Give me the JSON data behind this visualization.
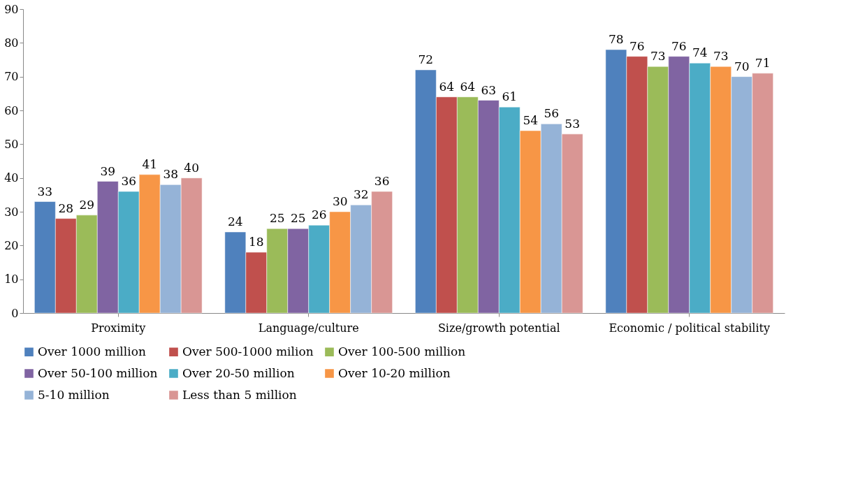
{
  "chart_data": {
    "type": "bar",
    "categories": [
      "Proximity",
      "Language/culture",
      "Size/growth potential",
      "Economic / political stability"
    ],
    "series": [
      {
        "name": "Over 1000 million",
        "color": "#4f81bd",
        "values": [
          33,
          24,
          72,
          78
        ]
      },
      {
        "name": "Over 500-1000 milion",
        "color": "#c0504d",
        "values": [
          28,
          18,
          64,
          76
        ]
      },
      {
        "name": "Over 100-500 million",
        "color": "#9bbb59",
        "values": [
          29,
          25,
          64,
          73
        ]
      },
      {
        "name": "Over 50-100 million",
        "color": "#8064a2",
        "values": [
          39,
          25,
          63,
          76
        ]
      },
      {
        "name": "Over 20-50 million",
        "color": "#4bacc6",
        "values": [
          36,
          26,
          61,
          74
        ]
      },
      {
        "name": "Over 10-20 million",
        "color": "#f79646",
        "values": [
          41,
          30,
          54,
          73
        ]
      },
      {
        "name": "5-10 million",
        "color": "#95b3d7",
        "values": [
          38,
          32,
          56,
          70
        ]
      },
      {
        "name": "Less than 5 million",
        "color": "#d99694",
        "values": [
          40,
          36,
          53,
          71
        ]
      }
    ],
    "ylim": [
      0,
      90
    ],
    "yticks": [
      0,
      10,
      20,
      30,
      40,
      50,
      60,
      70,
      80,
      90
    ],
    "grid": false,
    "legend": "bottom",
    "data_labels": true
  }
}
